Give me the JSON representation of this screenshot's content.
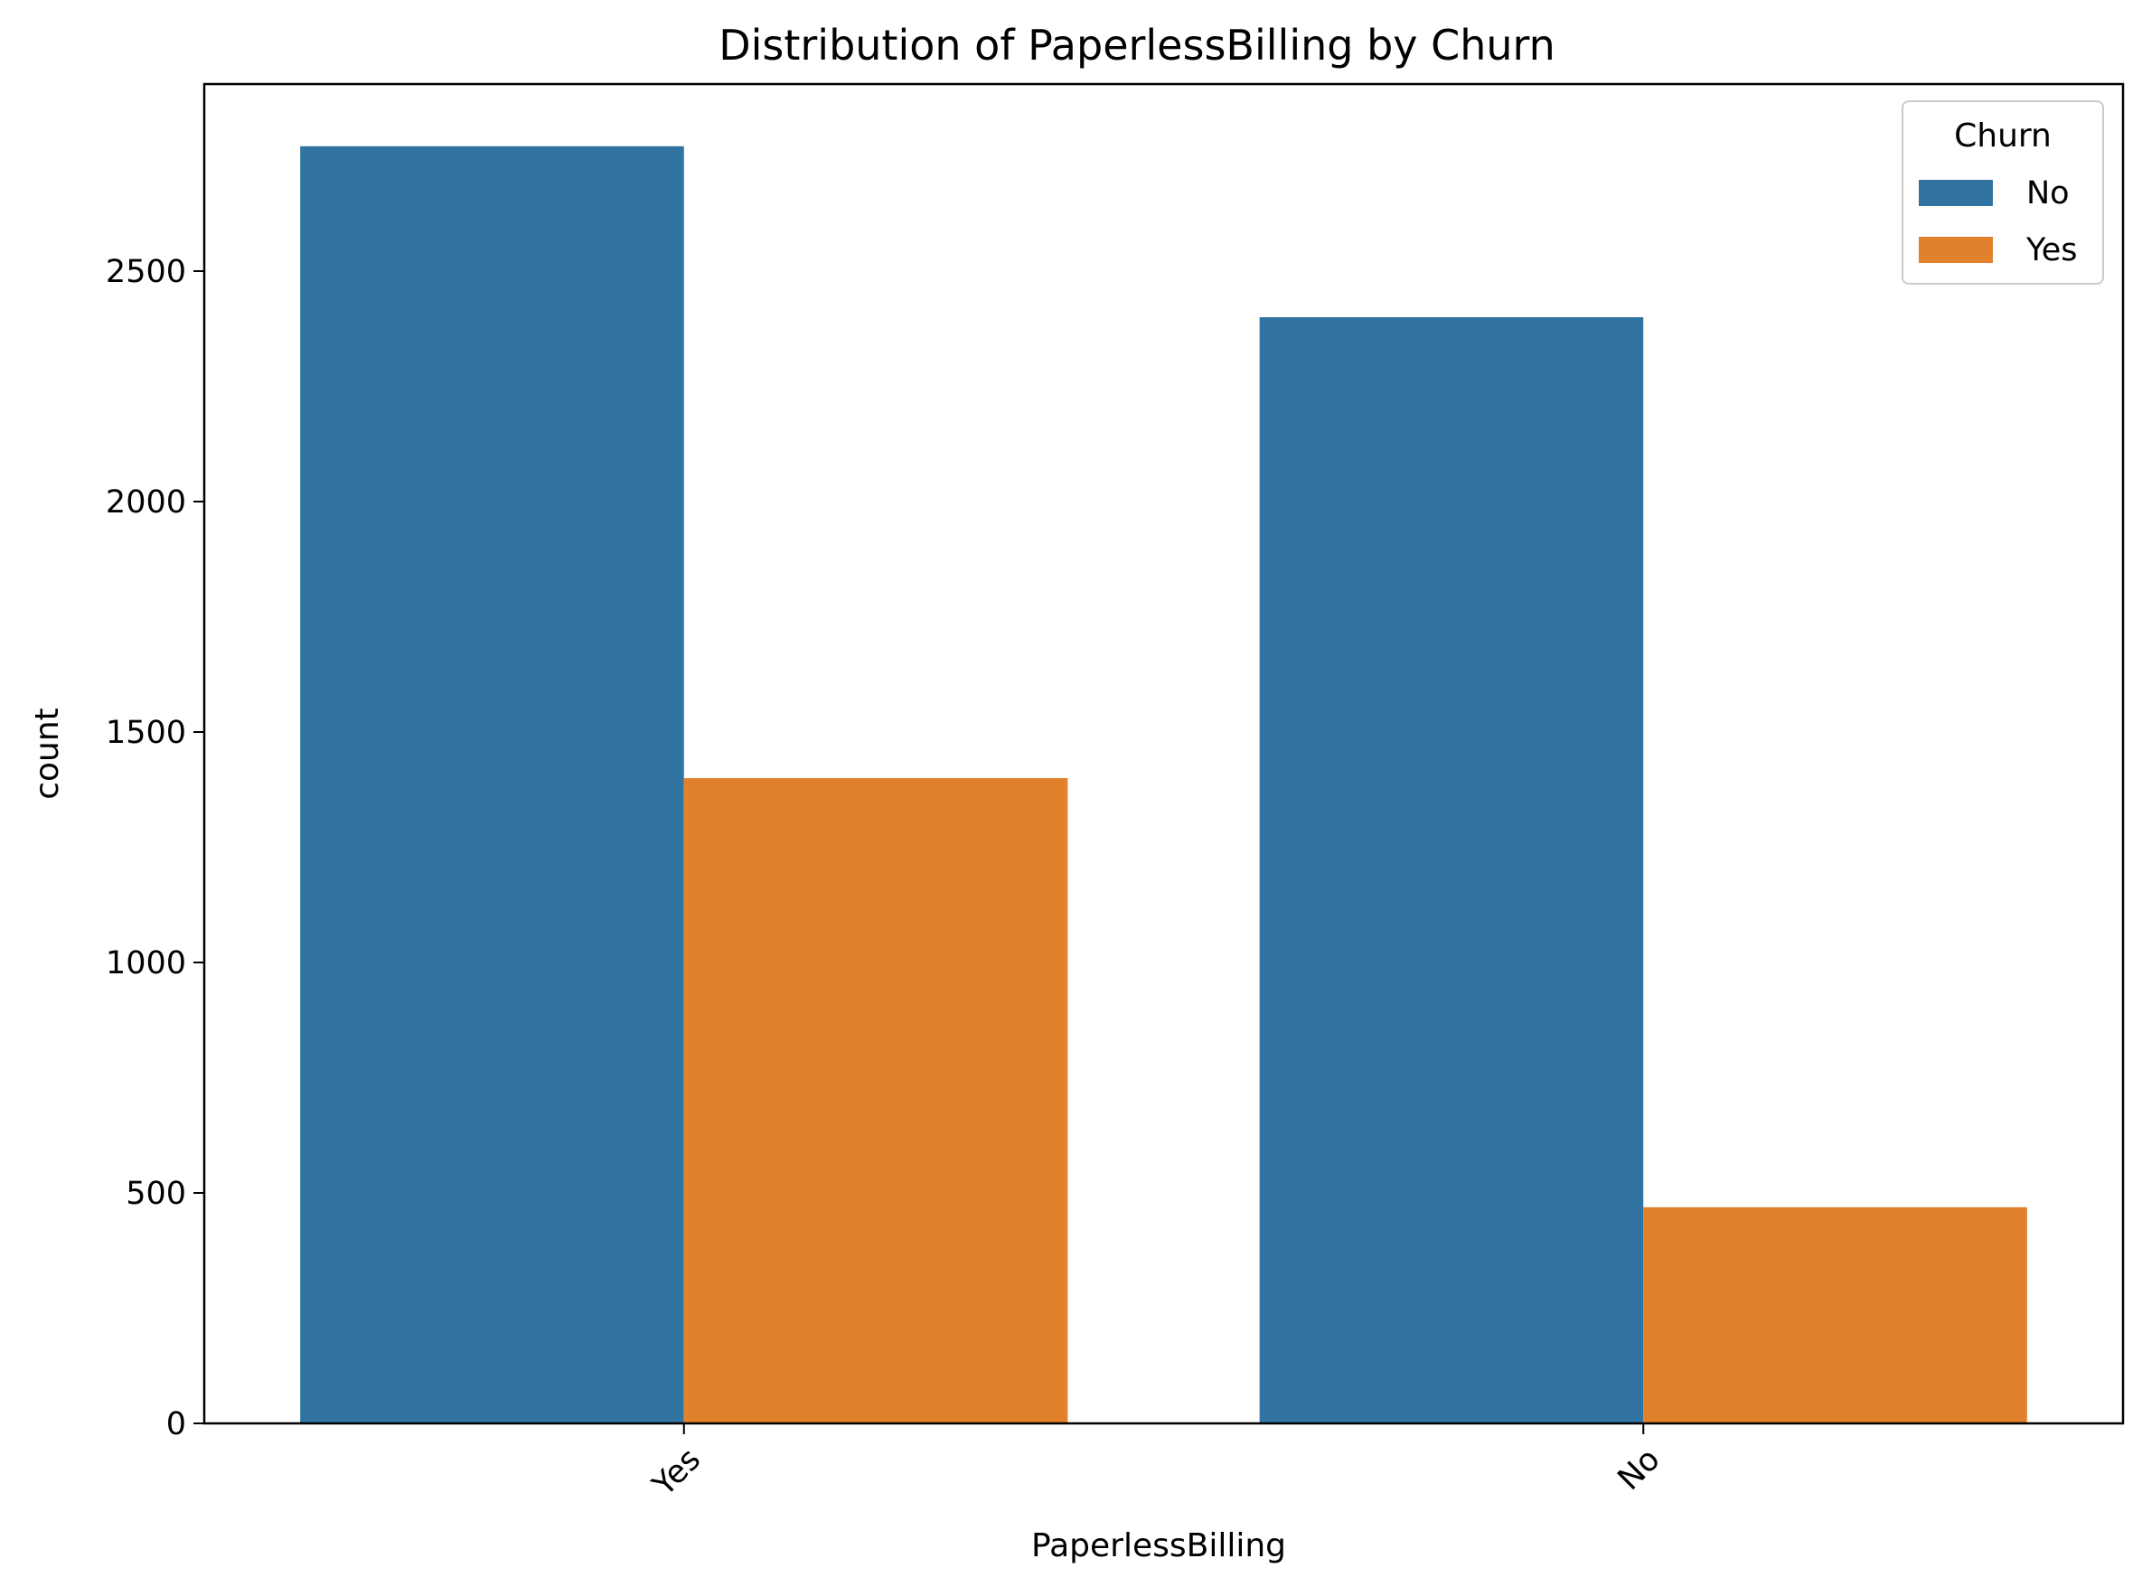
{
  "colors": {
    "No": "#3274a1",
    "Yes": "#e1812c"
  },
  "chart_data": {
    "type": "bar",
    "title": "Distribution of PaperlessBilling by Churn",
    "xlabel": "PaperlessBilling",
    "ylabel": "count",
    "categories": [
      "Yes",
      "No"
    ],
    "series": [
      {
        "name": "No",
        "values": [
          2771,
          2400
        ]
      },
      {
        "name": "Yes",
        "values": [
          1400,
          469
        ]
      }
    ],
    "ylim": [
      0,
      2900
    ],
    "yticks": [
      0,
      500,
      1000,
      1500,
      2000,
      2500
    ],
    "legend": {
      "title": "Churn",
      "placement": "top-right"
    },
    "grid": false
  }
}
